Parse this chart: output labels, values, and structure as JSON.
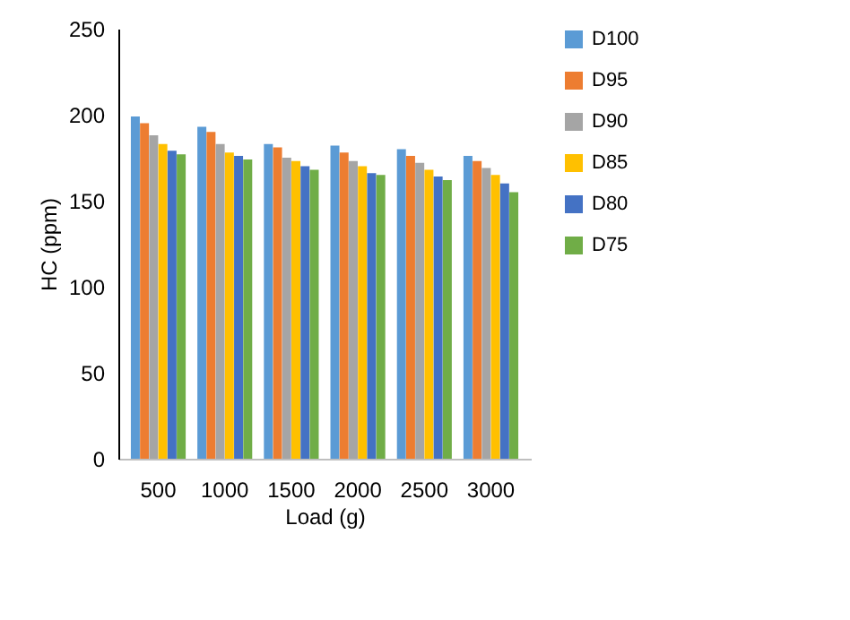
{
  "chart_data": {
    "type": "bar",
    "xlabel": "Load (g)",
    "ylabel": "HC (ppm)",
    "categories": [
      "500",
      "1000",
      "1500",
      "2000",
      "2500",
      "3000"
    ],
    "series": [
      {
        "name": "D100",
        "color": "#5b9bd5",
        "values": [
          199,
          193,
          183,
          182,
          180,
          176
        ]
      },
      {
        "name": "D95",
        "color": "#ed7d31",
        "values": [
          195,
          190,
          181,
          178,
          176,
          173
        ]
      },
      {
        "name": "D90",
        "color": "#a5a5a5",
        "values": [
          188,
          183,
          175,
          173,
          172,
          169
        ]
      },
      {
        "name": "D85",
        "color": "#ffc000",
        "values": [
          183,
          178,
          173,
          170,
          168,
          165
        ]
      },
      {
        "name": "D80",
        "color": "#4472c4",
        "values": [
          179,
          176,
          170,
          166,
          164,
          160
        ]
      },
      {
        "name": "D75",
        "color": "#70ad47",
        "values": [
          177,
          174,
          168,
          165,
          162,
          155
        ]
      }
    ],
    "ylim": [
      0,
      250
    ],
    "yticks": [
      0,
      50,
      100,
      150,
      200,
      250
    ],
    "grid": false,
    "legend": "right"
  }
}
